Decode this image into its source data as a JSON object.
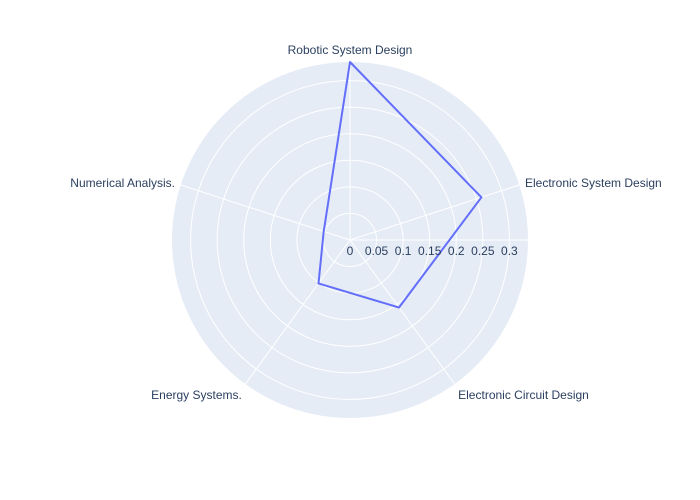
{
  "chart_data": {
    "type": "radar",
    "categories": [
      "Robotic System Design",
      "Electronic System Design",
      "Electronic Circuit Design",
      "Energy Systems.",
      "Numerical Analysis."
    ],
    "series": [
      {
        "values": [
          0.335,
          0.26,
          0.157,
          0.101,
          0.052
        ]
      }
    ],
    "radial_range": [
      0,
      0.335
    ],
    "radial_ticks": [
      0,
      0.05,
      0.1,
      0.15,
      0.2,
      0.25,
      0.3
    ],
    "radial_tick_labels": [
      "0",
      "0.05",
      "0.1",
      "0.15",
      "0.2",
      "0.25",
      "0.3"
    ],
    "grid": true,
    "colors": {
      "background": "#e5ecf6",
      "grid": "#ffffff",
      "line": "#636efa",
      "text": "#2a3f5f"
    }
  }
}
